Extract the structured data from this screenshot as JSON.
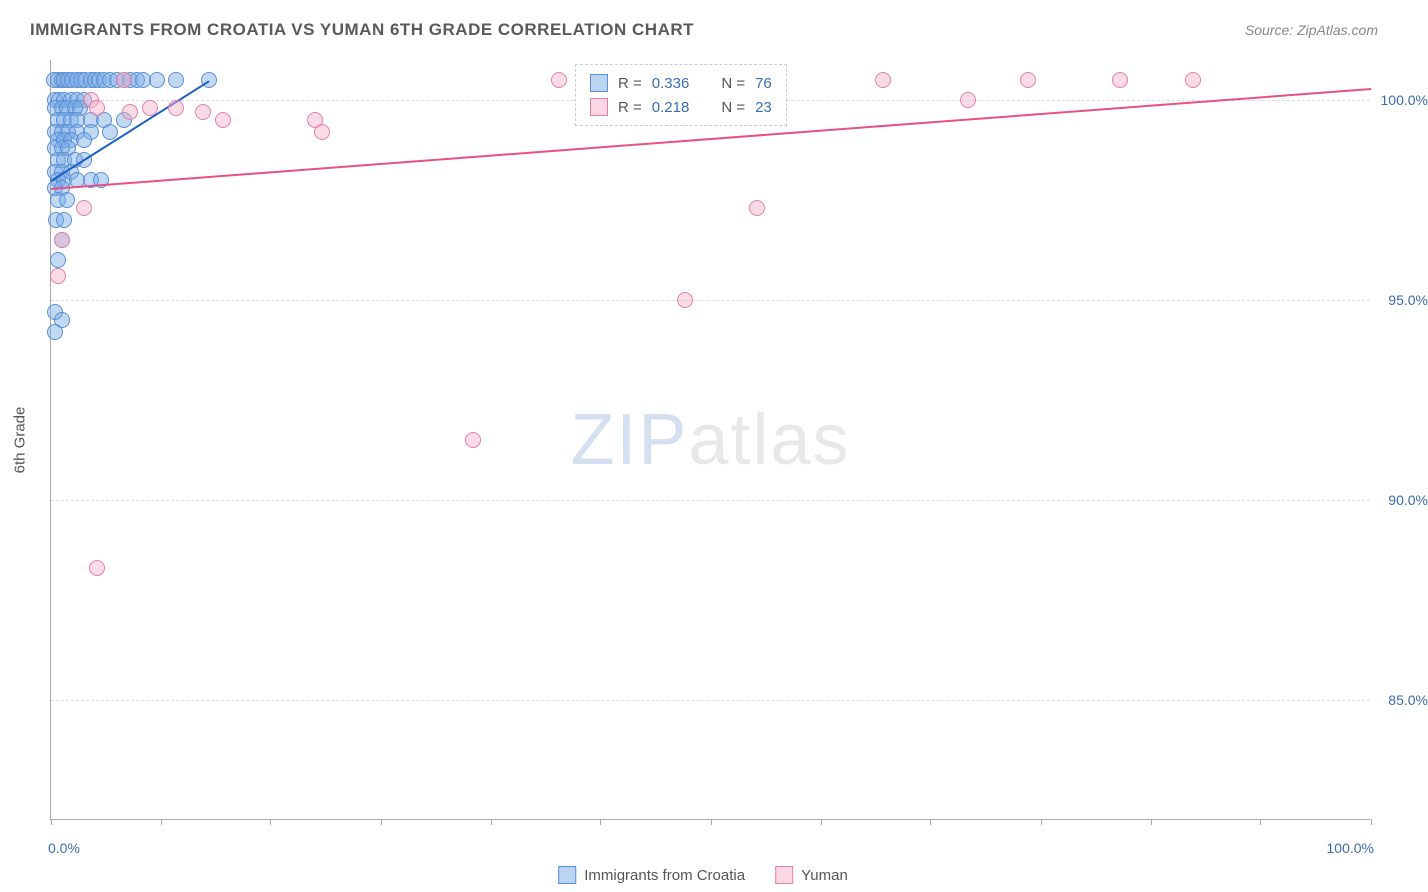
{
  "title": "IMMIGRANTS FROM CROATIA VS YUMAN 6TH GRADE CORRELATION CHART",
  "source": "Source: ZipAtlas.com",
  "y_axis_label": "6th Grade",
  "watermark": {
    "part1": "ZIP",
    "part2": "atlas"
  },
  "chart": {
    "type": "scatter",
    "xlim": [
      0,
      100
    ],
    "ylim": [
      82,
      101
    ],
    "background_color": "#ffffff",
    "grid_color": "#dddddd",
    "y_ticks": [
      85,
      90,
      95,
      100
    ],
    "y_tick_labels": [
      "85.0%",
      "90.0%",
      "95.0%",
      "100.0%"
    ],
    "x_ticks": [
      0,
      8.3,
      16.6,
      25,
      33.3,
      41.6,
      50,
      58.3,
      66.6,
      75,
      83.3,
      91.6,
      100
    ],
    "x_min_label": "0.0%",
    "x_max_label": "100.0%",
    "marker_radius": 8,
    "marker_opacity": 0.45,
    "series": [
      {
        "name": "Immigrants from Croatia",
        "color_fill": "#78aae6",
        "color_stroke": "#5a8fd4",
        "trend_color": "#1e5fc2",
        "R": 0.336,
        "N": 76,
        "trend": {
          "x1": 0,
          "y1": 98.0,
          "x2": 12,
          "y2": 100.5
        },
        "points": [
          [
            0.2,
            100.5
          ],
          [
            0.5,
            100.5
          ],
          [
            0.8,
            100.5
          ],
          [
            1.0,
            100.5
          ],
          [
            1.3,
            100.5
          ],
          [
            1.6,
            100.5
          ],
          [
            2.0,
            100.5
          ],
          [
            2.3,
            100.5
          ],
          [
            2.6,
            100.5
          ],
          [
            3.0,
            100.5
          ],
          [
            3.3,
            100.5
          ],
          [
            3.6,
            100.5
          ],
          [
            4.0,
            100.5
          ],
          [
            4.5,
            100.5
          ],
          [
            5.0,
            100.5
          ],
          [
            5.5,
            100.5
          ],
          [
            6.0,
            100.5
          ],
          [
            6.5,
            100.5
          ],
          [
            7.0,
            100.5
          ],
          [
            8.0,
            100.5
          ],
          [
            9.5,
            100.5
          ],
          [
            12.0,
            100.5
          ],
          [
            0.3,
            100.0
          ],
          [
            0.6,
            100.0
          ],
          [
            1.0,
            100.0
          ],
          [
            1.5,
            100.0
          ],
          [
            2.0,
            100.0
          ],
          [
            2.5,
            100.0
          ],
          [
            0.3,
            99.8
          ],
          [
            0.8,
            99.8
          ],
          [
            1.2,
            99.8
          ],
          [
            1.8,
            99.8
          ],
          [
            2.2,
            99.8
          ],
          [
            0.5,
            99.5
          ],
          [
            1.0,
            99.5
          ],
          [
            1.5,
            99.5
          ],
          [
            2.0,
            99.5
          ],
          [
            3.0,
            99.5
          ],
          [
            4.0,
            99.5
          ],
          [
            5.5,
            99.5
          ],
          [
            0.3,
            99.2
          ],
          [
            0.8,
            99.2
          ],
          [
            1.3,
            99.2
          ],
          [
            2.0,
            99.2
          ],
          [
            3.0,
            99.2
          ],
          [
            4.5,
            99.2
          ],
          [
            0.5,
            99.0
          ],
          [
            1.0,
            99.0
          ],
          [
            1.5,
            99.0
          ],
          [
            2.5,
            99.0
          ],
          [
            0.3,
            98.8
          ],
          [
            0.8,
            98.8
          ],
          [
            1.3,
            98.8
          ],
          [
            0.5,
            98.5
          ],
          [
            1.0,
            98.5
          ],
          [
            1.8,
            98.5
          ],
          [
            2.5,
            98.5
          ],
          [
            0.3,
            98.2
          ],
          [
            0.8,
            98.2
          ],
          [
            1.5,
            98.2
          ],
          [
            0.5,
            98.0
          ],
          [
            1.0,
            98.0
          ],
          [
            2.0,
            98.0
          ],
          [
            3.0,
            98.0
          ],
          [
            3.8,
            98.0
          ],
          [
            0.3,
            97.8
          ],
          [
            0.8,
            97.8
          ],
          [
            0.5,
            97.5
          ],
          [
            1.2,
            97.5
          ],
          [
            0.4,
            97.0
          ],
          [
            1.0,
            97.0
          ],
          [
            0.8,
            96.5
          ],
          [
            0.5,
            96.0
          ],
          [
            0.3,
            94.7
          ],
          [
            0.8,
            94.5
          ],
          [
            0.3,
            94.2
          ]
        ]
      },
      {
        "name": "Yuman",
        "color_fill": "#f5afc8",
        "color_stroke": "#e57fa8",
        "trend_color": "#e5528a",
        "R": 0.218,
        "N": 23,
        "trend": {
          "x1": 0,
          "y1": 97.8,
          "x2": 100,
          "y2": 100.3
        },
        "points": [
          [
            5.5,
            100.5
          ],
          [
            3.0,
            100.0
          ],
          [
            3.5,
            99.8
          ],
          [
            6.0,
            99.7
          ],
          [
            7.5,
            99.8
          ],
          [
            9.5,
            99.8
          ],
          [
            11.5,
            99.7
          ],
          [
            13.0,
            99.5
          ],
          [
            20.0,
            99.5
          ],
          [
            38.5,
            100.5
          ],
          [
            63.0,
            100.5
          ],
          [
            74.0,
            100.5
          ],
          [
            81.0,
            100.5
          ],
          [
            86.5,
            100.5
          ],
          [
            69.5,
            100.0
          ],
          [
            0.8,
            96.5
          ],
          [
            0.5,
            95.6
          ],
          [
            3.5,
            88.3
          ],
          [
            32.0,
            91.5
          ],
          [
            48.0,
            95.0
          ],
          [
            53.5,
            97.3
          ],
          [
            20.5,
            99.2
          ],
          [
            2.5,
            97.3
          ]
        ]
      }
    ]
  },
  "stats_legend": {
    "rows": [
      {
        "swatch": "blue",
        "r_label": "R =",
        "r_val": "0.336",
        "n_label": "N =",
        "n_val": "76"
      },
      {
        "swatch": "pink",
        "r_label": "R =",
        "r_val": "0.218",
        "n_label": "N =",
        "n_val": "23"
      }
    ]
  },
  "bottom_legend": {
    "items": [
      {
        "swatch": "blue",
        "label": "Immigrants from Croatia"
      },
      {
        "swatch": "pink",
        "label": "Yuman"
      }
    ]
  }
}
